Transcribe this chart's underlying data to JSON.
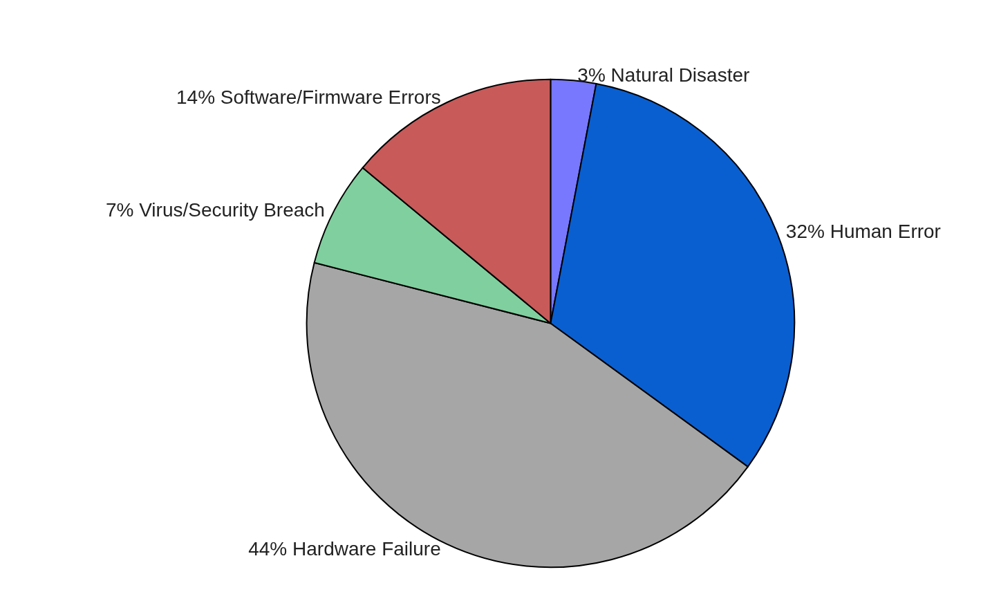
{
  "chart_data": {
    "type": "pie",
    "categories": [
      "Natural Disaster",
      "Human Error",
      "Hardware Failure",
      "Virus/Security Breach",
      "Software/Firmware Errors"
    ],
    "values": [
      3,
      32,
      44,
      7,
      14
    ],
    "colors": [
      "#7878ff",
      "#0a5fd0",
      "#a6a6a6",
      "#80cf9e",
      "#c85a5a"
    ],
    "value_labels": [
      "3%",
      "32%",
      "44%",
      "7%",
      "14%"
    ],
    "legend": false
  }
}
